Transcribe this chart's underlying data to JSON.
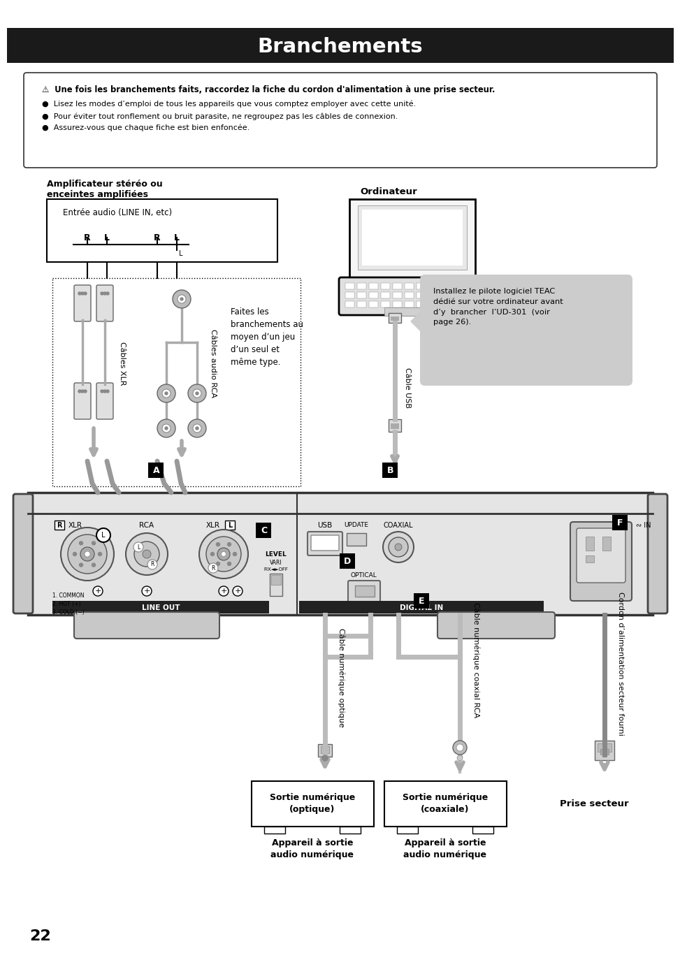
{
  "title": "Branchements",
  "bg_color": "#ffffff",
  "title_bg": "#1a1a1a",
  "title_text_color": "#ffffff",
  "warning_title": "⚠  Une fois les branchements faits, raccordez la fiche du cordon d'alimentation à une prise secteur.",
  "warning_bullets": [
    "Lisez les modes d’emploi de tous les appareils que vous comptez employer avec cette unité.",
    "Pour éviter tout ronflement ou bruit parasite, ne regroupez pas les câbles de connexion.",
    "Assurez-vous que chaque fiche est bien enfoncée."
  ],
  "label_ampli": "Amplificateur stéréo ou\nenceintes amplifiées",
  "label_ordinateur": "Ordinateur",
  "label_entree_audio": "Entrée audio (LINE IN, etc)",
  "label_cables_xlr": "Câbles XLR",
  "label_cables_rca": "Câbles audio RCA",
  "label_cable_usb": "Câble USB",
  "label_faites": "Faites les\nbranchements au\nmoyen d’un jeu\nd’un seul et\nmême type.",
  "label_installez": "Installez le pilote logiciel TEAC\ndédié sur votre ordinateur avant\nd’y  brancher  l’UD-301  (voir\npage 26).",
  "label_a": "A",
  "label_b": "B",
  "label_c": "C",
  "label_d": "D",
  "label_e": "E",
  "label_f": "F",
  "label_usb": "USB",
  "label_update": "UPDATE",
  "label_coaxial": "COAXIAL",
  "label_optical": "OPTICAL",
  "label_line_out": "LINE OUT",
  "label_digital_in": "DIGITAL IN",
  "label_level": "LEVEL",
  "label_vari": "VARI",
  "label_fix_off": "FIX◄►OFF",
  "label_1common": "1. COMMON\n2. HOT (+)\n3. COLD (−)",
  "label_in": "∾ IN",
  "label_sortie_opt_bold": "Sortie numérique\n(optique)",
  "label_sortie_coax_bold": "Sortie numérique\n(coaxiale)",
  "label_prise_bold": "Prise secteur",
  "label_appareil_opt": "Appareil à sortie\naudio numérique",
  "label_appareil_coax": "Appareil à sortie\naudio numérique",
  "label_cable_num_opt": "Câble numérique optique",
  "label_cable_num_coax": "Câble numérique coaxial RCA",
  "label_cordon": "Cordon d’alimentation secteur fourni",
  "page_number": "22"
}
